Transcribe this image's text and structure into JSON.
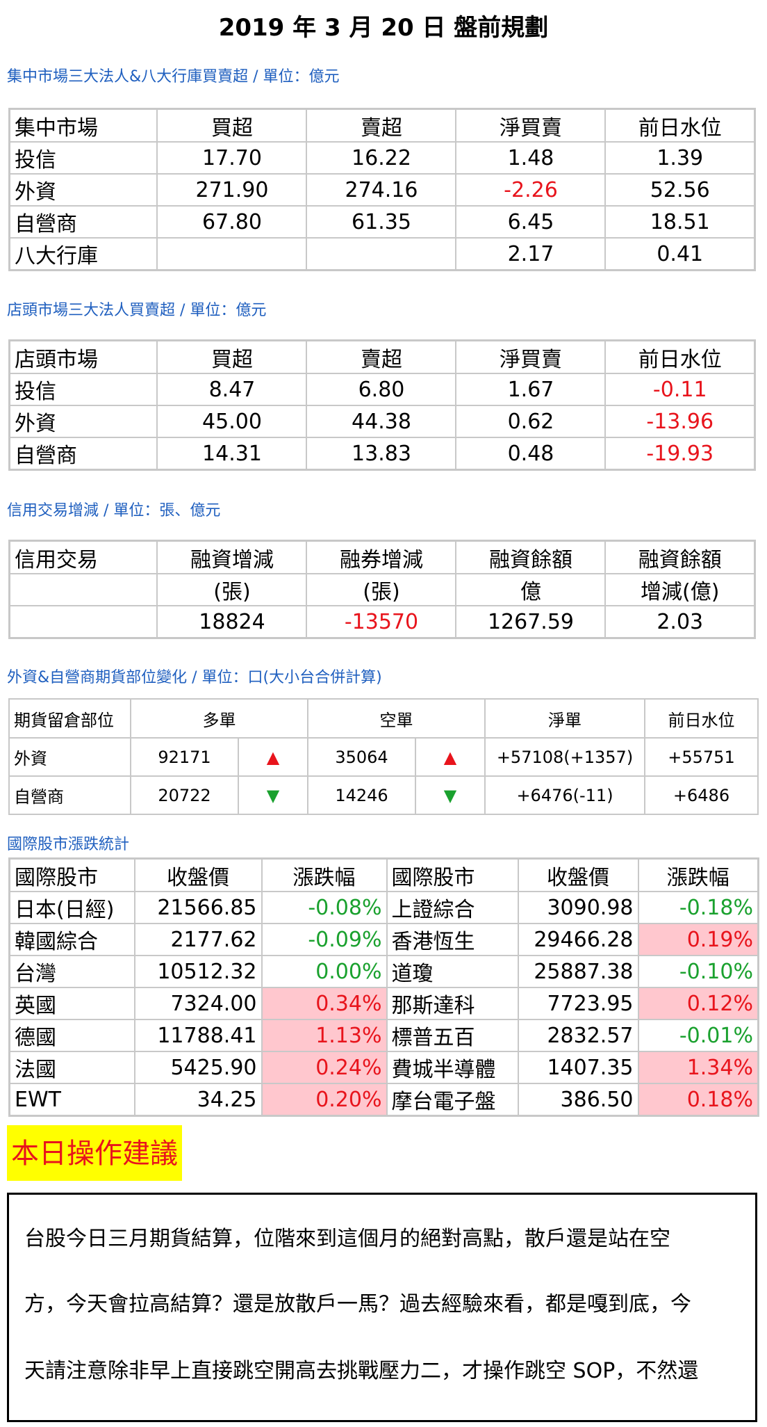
{
  "title": "2019 年 3 月 20 日  盤前規劃",
  "section1": {
    "caption": "集中市場三大法人&八大行庫買賣超 / 單位：億元",
    "headers": [
      "集中市場",
      "買超",
      "賣超",
      "淨買賣",
      "前日水位"
    ],
    "rows": [
      [
        "投信",
        "17.70",
        "16.22",
        "1.48",
        "1.39"
      ],
      [
        "外資",
        "271.90",
        "274.16",
        "-2.26",
        "52.56"
      ],
      [
        "自營商",
        "67.80",
        "61.35",
        "6.45",
        "18.51"
      ],
      [
        "八大行庫",
        "",
        "",
        "2.17",
        "0.41"
      ]
    ]
  },
  "section2": {
    "caption": "店頭市場三大法人買賣超 / 單位：億元",
    "headers": [
      "店頭市場",
      "買超",
      "賣超",
      "淨買賣",
      "前日水位"
    ],
    "rows": [
      [
        "投信",
        "8.47",
        "6.80",
        "1.67",
        "-0.11"
      ],
      [
        "外資",
        "45.00",
        "44.38",
        "0.62",
        "-13.96"
      ],
      [
        "自營商",
        "14.31",
        "13.83",
        "0.48",
        "-19.93"
      ]
    ]
  },
  "section3": {
    "caption": "信用交易增減 / 單位：張、億元",
    "headers": [
      "信用交易",
      "融資增減",
      "融券增減",
      "融資餘額",
      "融資餘額"
    ],
    "subheaders": [
      "",
      "(張)",
      "(張)",
      "億",
      "增減(億)"
    ],
    "values": [
      "",
      "18824",
      "-13570",
      "1267.59",
      "2.03"
    ]
  },
  "section4": {
    "caption": "外資&自營商期貨部位變化 / 單位：口(大小台合併計算)",
    "headers": [
      "期貨留倉部位",
      "多單",
      "空單",
      "淨單",
      "前日水位"
    ],
    "rows": [
      {
        "name": "外資",
        "long": "92171",
        "long_dir": "▲",
        "short": "35064",
        "short_dir": "▲",
        "net": "+57108(+1357)",
        "prev": "+55751"
      },
      {
        "name": "自營商",
        "long": "20722",
        "long_dir": "▼",
        "short": "14246",
        "short_dir": "▼",
        "net": "+6476(-11)",
        "prev": "+6486"
      }
    ]
  },
  "section5": {
    "caption": "國際股市漲跌統計",
    "headers": [
      "國際股市",
      "收盤價",
      "漲跌幅",
      "國際股市",
      "收盤價",
      "漲跌幅"
    ],
    "rows": [
      [
        "日本(日經)",
        "21566.85",
        "-0.08%",
        "上證綜合",
        "3090.98",
        "-0.18%"
      ],
      [
        "韓國綜合",
        "2177.62",
        "-0.09%",
        "香港恆生",
        "29466.28",
        "0.19%"
      ],
      [
        "台灣",
        "10512.32",
        "0.00%",
        "道瓊",
        "25887.38",
        "-0.10%"
      ],
      [
        "英國",
        "7324.00",
        "0.34%",
        "那斯達科",
        "7723.95",
        "0.12%"
      ],
      [
        "德國",
        "11788.41",
        "1.13%",
        "標普五百",
        "2832.57",
        "-0.01%"
      ],
      [
        "法國",
        "5425.90",
        "0.24%",
        "費城半導體",
        "1407.35",
        "1.34%"
      ],
      [
        "EWT",
        "34.25",
        "0.20%",
        "摩台電子盤",
        "386.50",
        "0.18%"
      ]
    ]
  },
  "advice": {
    "heading": "本日操作建議",
    "lines": [
      "台股今日三月期貨結算，位階來到這個月的絕對高點，散戶還是站在空",
      "方，今天會拉高結算？還是放散戶一馬？過去經驗來看，都是嘎到底，今",
      "天請注意除非早上直接跳空開高去挑戰壓力二，才操作跳空 SOP，不然還"
    ]
  },
  "colors": {
    "caption": "#1f5fbf",
    "negative": "#e8141c",
    "positive_green": "#1aa12e",
    "rise_highlight": "#ffc7ce",
    "advice_bg": "#ffff00"
  }
}
